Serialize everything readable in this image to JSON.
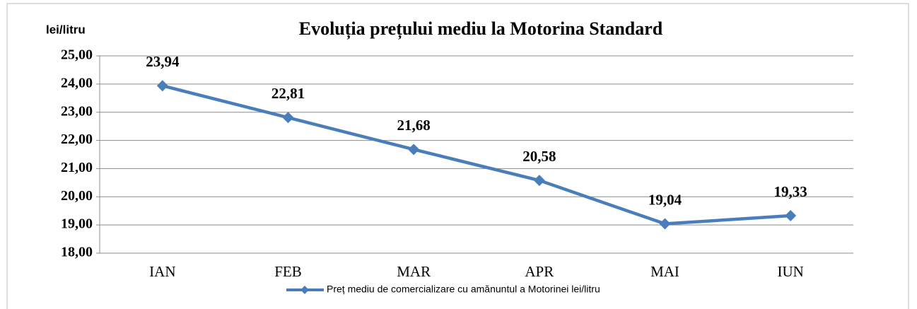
{
  "chart_data": {
    "type": "line",
    "title": "Evoluția prețului mediu la Motorina Standard",
    "y_label": "lei/litru",
    "categories": [
      "IAN",
      "FEB",
      "MAR",
      "APR",
      "MAI",
      "IUN"
    ],
    "series": [
      {
        "name": "Preț mediu de comercializare cu amănuntul a Motorinei lei/litru",
        "color": "#4a7ebb",
        "values": [
          23.94,
          22.81,
          21.68,
          20.58,
          19.04,
          19.33
        ],
        "value_labels": [
          "23,94",
          "22,81",
          "21,68",
          "20,58",
          "19,04",
          "19,33"
        ]
      }
    ],
    "ylim": [
      18,
      25
    ],
    "yticks": [
      {
        "value": 18,
        "label": "18,00"
      },
      {
        "value": 19,
        "label": "19,00"
      },
      {
        "value": 20,
        "label": "20,00"
      },
      {
        "value": 21,
        "label": "21,00"
      },
      {
        "value": 22,
        "label": "22,00"
      },
      {
        "value": 23,
        "label": "23,00"
      },
      {
        "value": 24,
        "label": "24,00"
      },
      {
        "value": 25,
        "label": "25,00"
      }
    ],
    "grid": true,
    "legend": "bottom"
  }
}
